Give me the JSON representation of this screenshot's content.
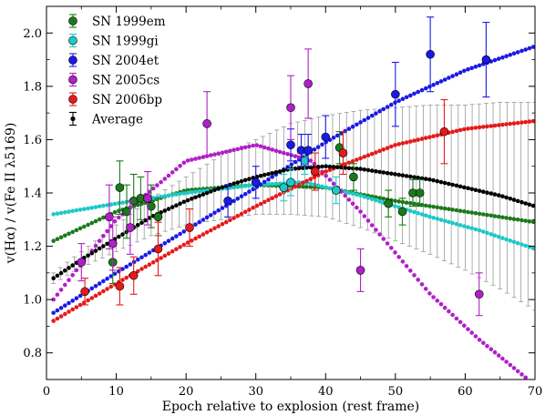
{
  "chart_data": {
    "type": "scatter",
    "xlabel": "Epoch relative to explosion (rest frame)",
    "ylabel": "v(Hα) / v(Fe II λ5169)",
    "xlim": [
      0,
      70
    ],
    "ylim": [
      0.7,
      2.1
    ],
    "xticks": [
      0,
      10,
      20,
      30,
      40,
      50,
      60,
      70
    ],
    "yticks": [
      0.8,
      1.0,
      1.2,
      1.4,
      1.6,
      1.8,
      2.0
    ],
    "grid": false,
    "legend_position": "top-left",
    "series": [
      {
        "name": "SN 1999em",
        "color": "#1a7a1a",
        "points": [
          {
            "x": 9.5,
            "y": 1.14,
            "err": 0.08
          },
          {
            "x": 10.5,
            "y": 1.42,
            "err": 0.1
          },
          {
            "x": 11.5,
            "y": 1.33,
            "err": 0.1
          },
          {
            "x": 12.5,
            "y": 1.37,
            "err": 0.1
          },
          {
            "x": 13.5,
            "y": 1.38,
            "err": 0.08
          },
          {
            "x": 15,
            "y": 1.35,
            "err": 0.08
          },
          {
            "x": 16,
            "y": 1.31,
            "err": 0.07
          },
          {
            "x": 42,
            "y": 1.57,
            "err": 0.06
          },
          {
            "x": 44,
            "y": 1.46,
            "err": 0.05
          },
          {
            "x": 49,
            "y": 1.36,
            "err": 0.05
          },
          {
            "x": 51,
            "y": 1.33,
            "err": 0.05
          },
          {
            "x": 52.5,
            "y": 1.4,
            "err": 0.05
          },
          {
            "x": 53.5,
            "y": 1.4,
            "err": 0.05
          }
        ],
        "fit": [
          {
            "x": 1,
            "y": 1.22
          },
          {
            "x": 10,
            "y": 1.33
          },
          {
            "x": 20,
            "y": 1.41
          },
          {
            "x": 30,
            "y": 1.43
          },
          {
            "x": 40,
            "y": 1.42
          },
          {
            "x": 50,
            "y": 1.37
          },
          {
            "x": 60,
            "y": 1.33
          },
          {
            "x": 70,
            "y": 1.29
          }
        ]
      },
      {
        "name": "SN 1999gi",
        "color": "#1ec8c8",
        "points": [
          {
            "x": 34,
            "y": 1.42,
            "err": 0.05
          },
          {
            "x": 35,
            "y": 1.44,
            "err": 0.05
          },
          {
            "x": 37,
            "y": 1.52,
            "err": 0.05
          },
          {
            "x": 41.5,
            "y": 1.41,
            "err": 0.05
          }
        ],
        "fit": [
          {
            "x": 1,
            "y": 1.32
          },
          {
            "x": 10,
            "y": 1.36
          },
          {
            "x": 20,
            "y": 1.4
          },
          {
            "x": 30,
            "y": 1.43
          },
          {
            "x": 37,
            "y": 1.44
          },
          {
            "x": 45,
            "y": 1.39
          },
          {
            "x": 55,
            "y": 1.31
          },
          {
            "x": 62,
            "y": 1.26
          },
          {
            "x": 70,
            "y": 1.19
          }
        ]
      },
      {
        "name": "SN 2004et",
        "color": "#1a1ae6",
        "points": [
          {
            "x": 26,
            "y": 1.37,
            "err": 0.06
          },
          {
            "x": 30,
            "y": 1.44,
            "err": 0.06
          },
          {
            "x": 35,
            "y": 1.58,
            "err": 0.06
          },
          {
            "x": 36.5,
            "y": 1.56,
            "err": 0.06
          },
          {
            "x": 37.5,
            "y": 1.56,
            "err": 0.06
          },
          {
            "x": 40,
            "y": 1.61,
            "err": 0.08
          },
          {
            "x": 50,
            "y": 1.77,
            "err": 0.12
          },
          {
            "x": 55,
            "y": 1.92,
            "err": 0.14
          },
          {
            "x": 63,
            "y": 1.9,
            "err": 0.14
          }
        ],
        "fit": [
          {
            "x": 1,
            "y": 0.95
          },
          {
            "x": 10,
            "y": 1.1
          },
          {
            "x": 20,
            "y": 1.26
          },
          {
            "x": 30,
            "y": 1.42
          },
          {
            "x": 40,
            "y": 1.59
          },
          {
            "x": 50,
            "y": 1.74
          },
          {
            "x": 60,
            "y": 1.86
          },
          {
            "x": 70,
            "y": 1.95
          }
        ]
      },
      {
        "name": "SN 2005cs",
        "color": "#b020c8",
        "points": [
          {
            "x": 5,
            "y": 1.14,
            "err": 0.07
          },
          {
            "x": 9,
            "y": 1.31,
            "err": 0.12
          },
          {
            "x": 9.5,
            "y": 1.21,
            "err": 0.1
          },
          {
            "x": 12,
            "y": 1.27,
            "err": 0.1
          },
          {
            "x": 14.5,
            "y": 1.38,
            "err": 0.1
          },
          {
            "x": 23,
            "y": 1.66,
            "err": 0.12
          },
          {
            "x": 35,
            "y": 1.72,
            "err": 0.12
          },
          {
            "x": 37.5,
            "y": 1.81,
            "err": 0.13
          },
          {
            "x": 45,
            "y": 1.11,
            "err": 0.08
          },
          {
            "x": 62,
            "y": 1.02,
            "err": 0.08
          }
        ],
        "fit": [
          {
            "x": 1,
            "y": 1.0
          },
          {
            "x": 10,
            "y": 1.3
          },
          {
            "x": 20,
            "y": 1.52
          },
          {
            "x": 30,
            "y": 1.58
          },
          {
            "x": 38,
            "y": 1.52
          },
          {
            "x": 45,
            "y": 1.33
          },
          {
            "x": 55,
            "y": 1.02
          },
          {
            "x": 62,
            "y": 0.85
          },
          {
            "x": 69,
            "y": 0.7
          }
        ]
      },
      {
        "name": "SN 2006bp",
        "color": "#e61a1a",
        "points": [
          {
            "x": 5.5,
            "y": 1.03,
            "err": 0.05
          },
          {
            "x": 10.5,
            "y": 1.05,
            "err": 0.07
          },
          {
            "x": 12.5,
            "y": 1.09,
            "err": 0.07
          },
          {
            "x": 16,
            "y": 1.19,
            "err": 0.1
          },
          {
            "x": 20.5,
            "y": 1.27,
            "err": 0.07
          },
          {
            "x": 38.5,
            "y": 1.48,
            "err": 0.07
          },
          {
            "x": 42.5,
            "y": 1.55,
            "err": 0.08
          },
          {
            "x": 57,
            "y": 1.63,
            "err": 0.12
          }
        ],
        "fit": [
          {
            "x": 1,
            "y": 0.92
          },
          {
            "x": 10,
            "y": 1.06
          },
          {
            "x": 20,
            "y": 1.21
          },
          {
            "x": 30,
            "y": 1.35
          },
          {
            "x": 40,
            "y": 1.48
          },
          {
            "x": 50,
            "y": 1.58
          },
          {
            "x": 60,
            "y": 1.64
          },
          {
            "x": 70,
            "y": 1.67
          }
        ]
      },
      {
        "name": "Average",
        "color": "#000000",
        "fit": [
          {
            "x": 1,
            "y": 1.08,
            "err": 0.02
          },
          {
            "x": 5,
            "y": 1.15,
            "err": 0.03
          },
          {
            "x": 10,
            "y": 1.23,
            "err": 0.05
          },
          {
            "x": 15,
            "y": 1.31,
            "err": 0.07
          },
          {
            "x": 20,
            "y": 1.37,
            "err": 0.09
          },
          {
            "x": 25,
            "y": 1.42,
            "err": 0.12
          },
          {
            "x": 30,
            "y": 1.46,
            "err": 0.14
          },
          {
            "x": 35,
            "y": 1.49,
            "err": 0.17
          },
          {
            "x": 40,
            "y": 1.5,
            "err": 0.19
          },
          {
            "x": 45,
            "y": 1.49,
            "err": 0.22
          },
          {
            "x": 50,
            "y": 1.47,
            "err": 0.25
          },
          {
            "x": 55,
            "y": 1.45,
            "err": 0.28
          },
          {
            "x": 60,
            "y": 1.42,
            "err": 0.31
          },
          {
            "x": 65,
            "y": 1.39,
            "err": 0.35
          },
          {
            "x": 70,
            "y": 1.35,
            "err": 0.39
          }
        ]
      }
    ]
  }
}
